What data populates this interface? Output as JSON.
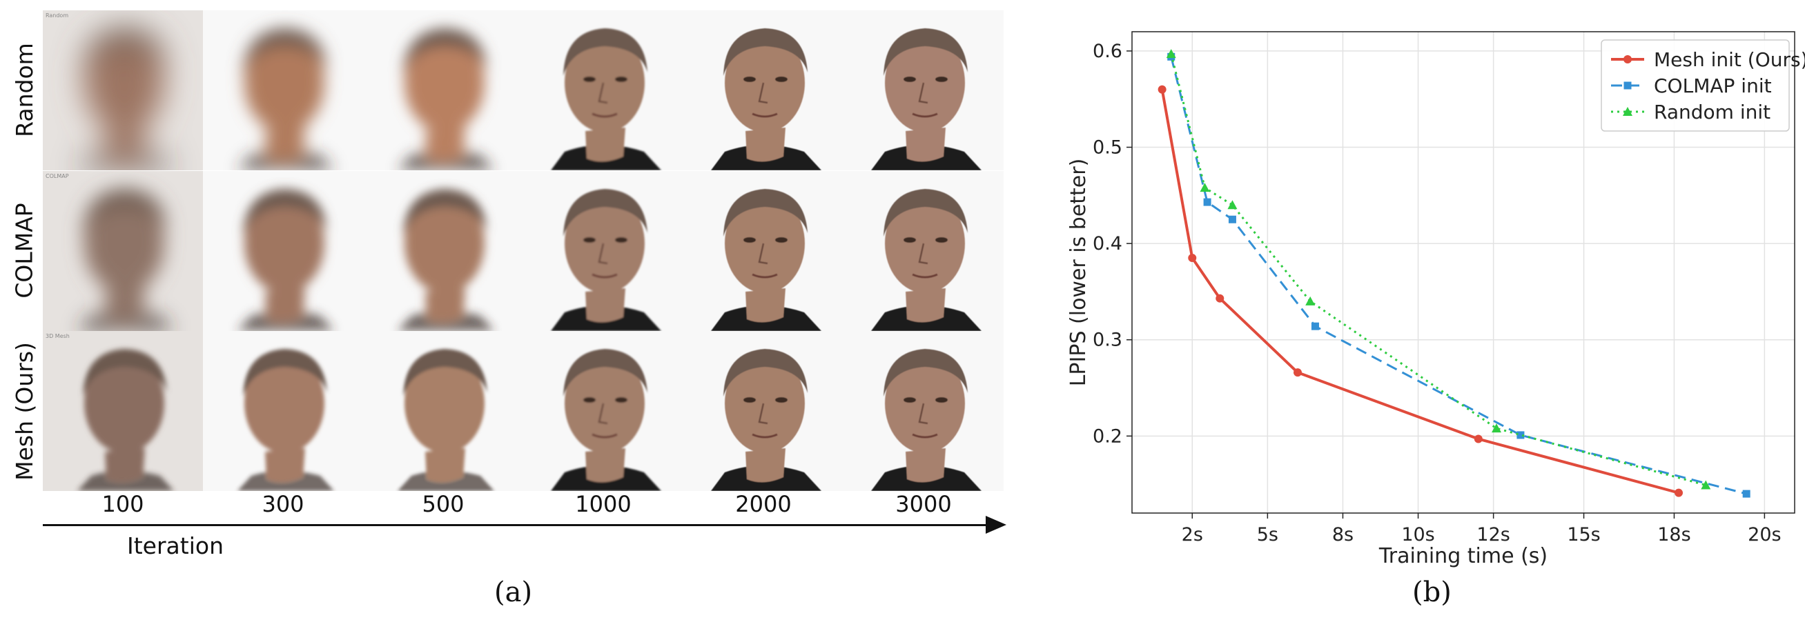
{
  "panel_a": {
    "rows": [
      {
        "label": "Random",
        "tag": "Random"
      },
      {
        "label": "COLMAP",
        "tag": "COLMAP"
      },
      {
        "label": "Mesh (Ours)",
        "tag": "3D Mesh"
      }
    ],
    "iterations": [
      "100",
      "300",
      "500",
      "1000",
      "2000",
      "3000"
    ],
    "axis_label": "Iteration",
    "caption": "(a)"
  },
  "panel_b": {
    "caption": "(b)"
  },
  "chart_data": {
    "type": "line",
    "xlabel": "Training time (s)",
    "ylabel": "LPIPS  (lower is better)",
    "xlim": [
      0,
      20.5
    ],
    "ylim": [
      0.12,
      0.62
    ],
    "xticks": [
      2,
      5,
      8,
      10,
      12,
      15,
      18,
      20
    ],
    "xtick_labels": [
      "2s",
      "5s",
      "8s",
      "10s",
      "12s",
      "15s",
      "18s",
      "20s"
    ],
    "xtick_positions": [
      2,
      4.5,
      7,
      9.5,
      12,
      15,
      18,
      21
    ],
    "yticks": [
      0.2,
      0.3,
      0.4,
      0.5,
      0.6
    ],
    "ytick_labels": [
      "0.2",
      "0.3",
      "0.4",
      "0.5",
      "0.6"
    ],
    "grid": true,
    "legend_position": "top-right",
    "series": [
      {
        "name": "Mesh init (Ours)",
        "color": "#e04b3c",
        "marker": "circle",
        "style": "solid",
        "x": [
          1.0,
          2.0,
          3.1,
          6.2,
          11.6,
          18.1
        ],
        "y": [
          0.56,
          0.385,
          0.343,
          0.266,
          0.197,
          0.141
        ]
      },
      {
        "name": "COLMAP init",
        "color": "#3390d5",
        "marker": "square",
        "style": "dashed",
        "x": [
          1.3,
          2.6,
          3.6,
          6.9,
          12.9,
          19.6
        ],
        "y": [
          0.594,
          0.443,
          0.425,
          0.314,
          0.201,
          0.14
        ]
      },
      {
        "name": "Random init",
        "color": "#2ecc40",
        "marker": "triangle",
        "style": "dotted",
        "x": [
          1.3,
          2.5,
          3.6,
          6.7,
          12.1,
          18.7
        ],
        "y": [
          0.597,
          0.458,
          0.44,
          0.34,
          0.208,
          0.149
        ]
      }
    ]
  }
}
